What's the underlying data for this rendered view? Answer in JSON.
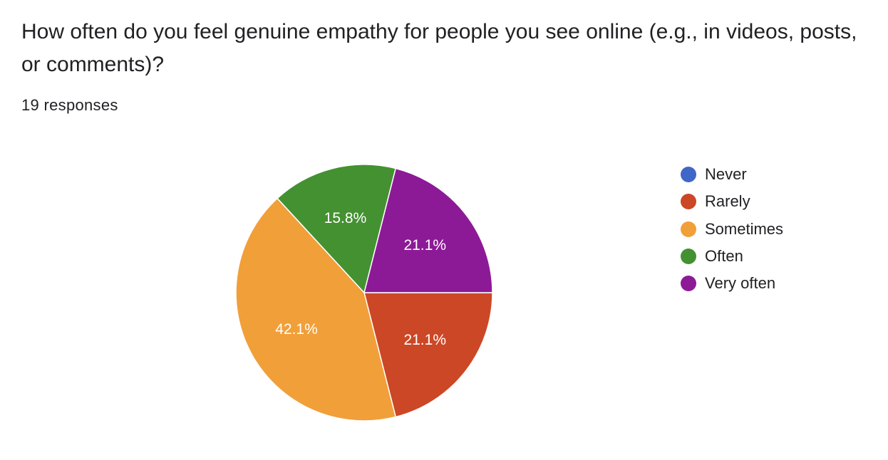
{
  "question": {
    "title": "How often do you feel genuine empathy for people you see online (e.g., in videos, posts, or comments)?",
    "responses": "19 responses"
  },
  "chart_data": {
    "type": "pie",
    "title": "How often do you feel genuine empathy for people you see online (e.g., in videos, posts, or comments)?",
    "total_responses": 19,
    "legend_position": "right",
    "slices": [
      {
        "label": "Never",
        "value": 0,
        "percent_label": "",
        "color": "#3f67c8"
      },
      {
        "label": "Rarely",
        "value": 4,
        "percent_label": "21.1%",
        "color": "#cc4726"
      },
      {
        "label": "Sometimes",
        "value": 8,
        "percent_label": "42.1%",
        "color": "#f19f39"
      },
      {
        "label": "Often",
        "value": 3,
        "percent_label": "15.8%",
        "color": "#449132"
      },
      {
        "label": "Very often",
        "value": 4,
        "percent_label": "21.1%",
        "color": "#8c1a96"
      }
    ]
  }
}
